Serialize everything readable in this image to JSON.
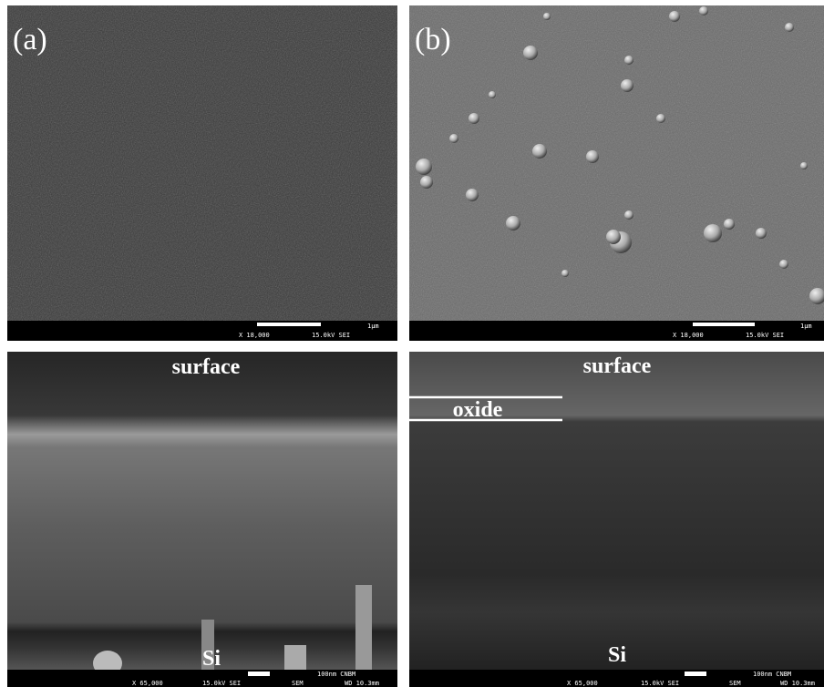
{
  "panels": [
    {
      "label": "(a)",
      "scale_bar": "1μm",
      "magnification": "X 18,000",
      "voltage": "15.0kV SEI"
    },
    {
      "label": "(b)",
      "scale_bar": "1μm",
      "magnification": "X 18,000",
      "voltage": "15.0kV SEI"
    },
    {
      "top_label": "surface",
      "bottom_label": "Si",
      "scale_bar": "100nm CNBM",
      "magnification": "X 65,000",
      "voltage": "15.0kV SEI",
      "detector": "SEM",
      "working_distance": "WD 10.3mm"
    },
    {
      "top_label": "surface",
      "layer_label": "oxide",
      "bottom_label": "Si",
      "scale_bar": "100nm CNBM",
      "magnification": "X 65,000",
      "voltage": "15.0kV SEI",
      "detector": "SEM",
      "working_distance": "WD 10.3mm"
    }
  ]
}
